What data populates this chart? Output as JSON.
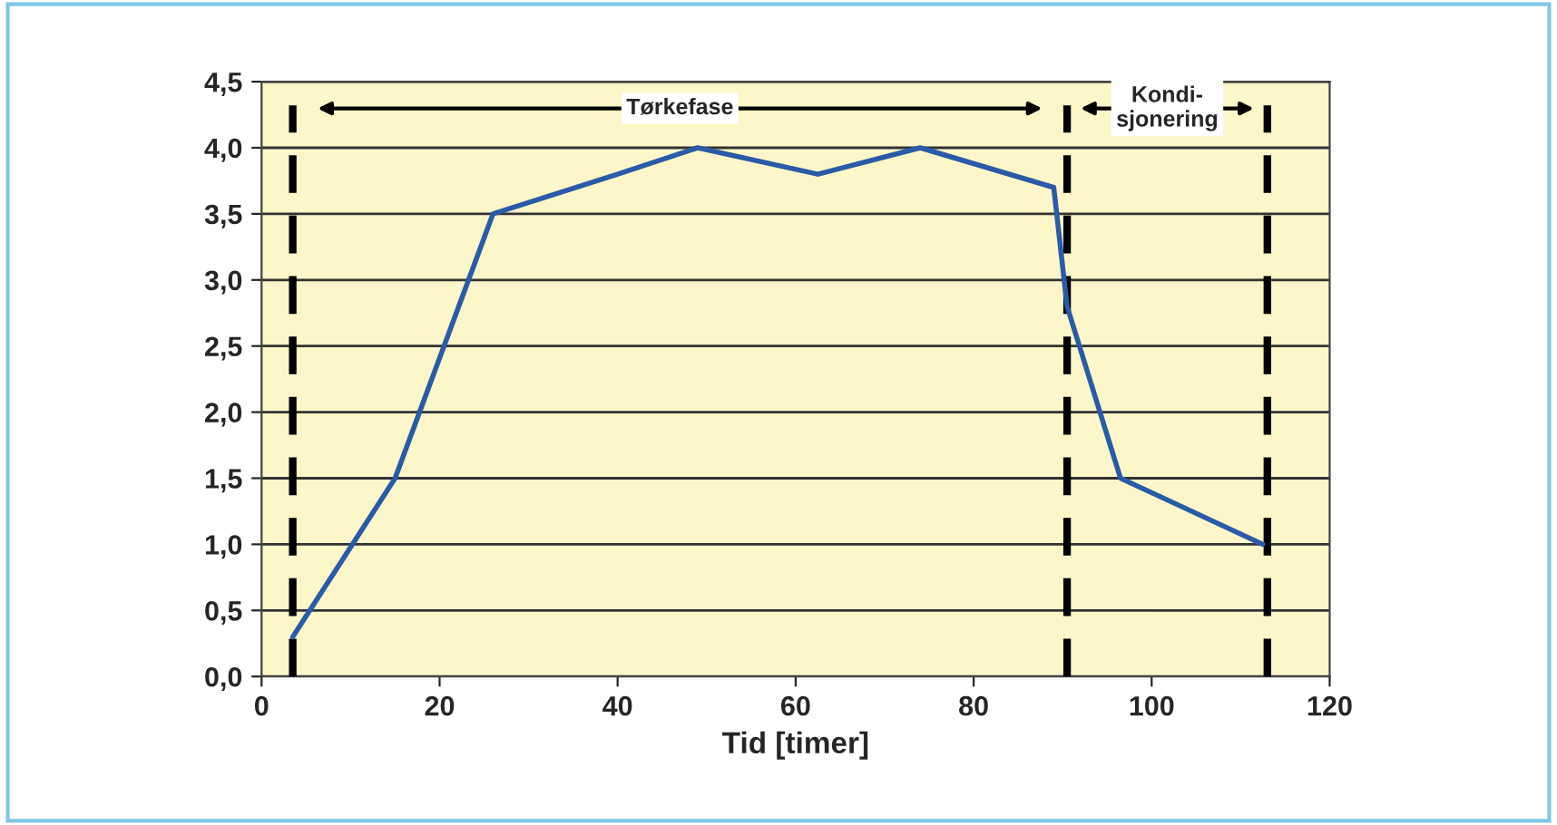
{
  "chart_data": {
    "type": "line",
    "xlabel": "Tid [timer]",
    "x": [
      3.5,
      15,
      26,
      40,
      49,
      62.5,
      74,
      89,
      90.5,
      96.5,
      112.5
    ],
    "series": [
      {
        "color": "#2a5ba8",
        "values": [
          0.3,
          1.5,
          3.5,
          3.8,
          4.0,
          3.8,
          4.0,
          3.7,
          2.8,
          1.5,
          1.0
        ]
      }
    ],
    "xlim": [
      0,
      120
    ],
    "xticks": [
      0,
      20,
      40,
      60,
      80,
      100,
      120
    ],
    "ylim": [
      0,
      4.5
    ],
    "yticks": [
      {
        "value": 0,
        "label": "0,0"
      },
      {
        "value": 0.5,
        "label": "0,5"
      },
      {
        "value": 1,
        "label": "1,0"
      },
      {
        "value": 1.5,
        "label": "1,5"
      },
      {
        "value": 2,
        "label": "2,0"
      },
      {
        "value": 2.5,
        "label": "2,5"
      },
      {
        "value": 3,
        "label": "3,0"
      },
      {
        "value": 3.5,
        "label": "3,5"
      },
      {
        "value": 4,
        "label": "4,0"
      },
      {
        "value": 4.5,
        "label": "4,5"
      }
    ],
    "grid": "y",
    "marker": "none",
    "line_style": "solid",
    "ref_lines": [
      {
        "axis": "x",
        "value": 3.5,
        "color": "#000000",
        "line_style": "dashed"
      },
      {
        "axis": "x",
        "value": 90.5,
        "color": "#000000",
        "line_style": "dashed"
      },
      {
        "axis": "x",
        "value": 113,
        "color": "#000000",
        "line_style": "dashed"
      }
    ],
    "annotations": [
      "Tørkefase",
      "Kondi-\nsjonering"
    ]
  }
}
